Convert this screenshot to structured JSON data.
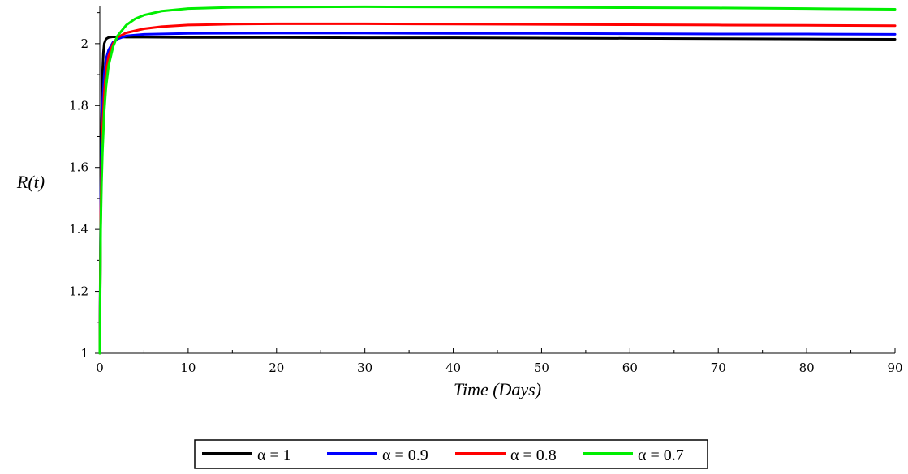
{
  "chart_data": {
    "type": "line",
    "xlabel": "Time (Days)",
    "ylabel": "R(t)",
    "xlim": [
      0,
      90
    ],
    "ylim": [
      1,
      2.12
    ],
    "xticks": [
      "0",
      "10",
      "20",
      "30",
      "40",
      "50",
      "60",
      "70",
      "80",
      "90"
    ],
    "yticks": [
      "1",
      "1.2",
      "1.4",
      "1.6",
      "1.8",
      "2"
    ],
    "grid": false,
    "legend_position": "bottom",
    "series": [
      {
        "name": "α = 1",
        "color": "#000000",
        "x": [
          0,
          0.1,
          0.2,
          0.3,
          0.4,
          0.5,
          0.7,
          1,
          1.5,
          2,
          3,
          5,
          10,
          20,
          30,
          40,
          50,
          60,
          70,
          80,
          90
        ],
        "y": [
          1.0,
          1.45,
          1.75,
          1.9,
          1.97,
          2.0,
          2.015,
          2.02,
          2.022,
          2.022,
          2.021,
          2.021,
          2.02,
          2.02,
          2.019,
          2.019,
          2.018,
          2.017,
          2.016,
          2.015,
          2.014
        ]
      },
      {
        "name": "α = 0.9",
        "color": "#0000ff",
        "x": [
          0,
          0.1,
          0.2,
          0.3,
          0.5,
          0.7,
          1,
          1.5,
          2,
          3,
          5,
          10,
          20,
          30,
          40,
          50,
          60,
          70,
          80,
          90
        ],
        "y": [
          1.0,
          1.5,
          1.7,
          1.8,
          1.9,
          1.95,
          1.98,
          2.005,
          2.015,
          2.025,
          2.03,
          2.033,
          2.034,
          2.034,
          2.033,
          2.033,
          2.032,
          2.031,
          2.031,
          2.03
        ]
      },
      {
        "name": "α = 0.8",
        "color": "#ff0000",
        "x": [
          0,
          0.1,
          0.2,
          0.3,
          0.5,
          0.7,
          1,
          1.5,
          2,
          3,
          5,
          7,
          10,
          15,
          20,
          30,
          40,
          50,
          60,
          70,
          80,
          90
        ],
        "y": [
          1.0,
          1.45,
          1.62,
          1.72,
          1.84,
          1.91,
          1.96,
          2.0,
          2.02,
          2.035,
          2.048,
          2.055,
          2.06,
          2.063,
          2.064,
          2.064,
          2.063,
          2.062,
          2.061,
          2.06,
          2.059,
          2.058
        ]
      },
      {
        "name": "α = 0.7",
        "color": "#00ee00",
        "x": [
          0,
          0.1,
          0.2,
          0.3,
          0.5,
          0.7,
          1,
          1.5,
          2,
          3,
          4,
          5,
          7,
          10,
          15,
          20,
          30,
          40,
          50,
          60,
          70,
          80,
          90
        ],
        "y": [
          1.0,
          1.4,
          1.55,
          1.65,
          1.78,
          1.86,
          1.93,
          1.99,
          2.025,
          2.06,
          2.08,
          2.092,
          2.105,
          2.113,
          2.117,
          2.118,
          2.119,
          2.118,
          2.117,
          2.116,
          2.115,
          2.113,
          2.111
        ]
      }
    ]
  }
}
